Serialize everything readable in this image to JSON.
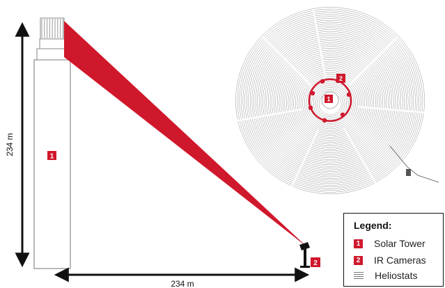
{
  "dimensions": {
    "height_label": "234 m",
    "distance_label": "234 m"
  },
  "markers": {
    "tower": "1",
    "cameras": "2"
  },
  "legend": {
    "title": "Legend:",
    "items": [
      {
        "badge": "1",
        "label": "Solar Tower",
        "kind": "badge"
      },
      {
        "badge": "2",
        "label": "IR Cameras",
        "kind": "badge"
      },
      {
        "badge": "",
        "label": "Heliostats",
        "kind": "swatch"
      }
    ]
  },
  "colors": {
    "accent": "#d0182c",
    "tower_outline": "#8a8a8a",
    "heliostat_lines": "#7a7a7a",
    "arrow": "#111111"
  }
}
